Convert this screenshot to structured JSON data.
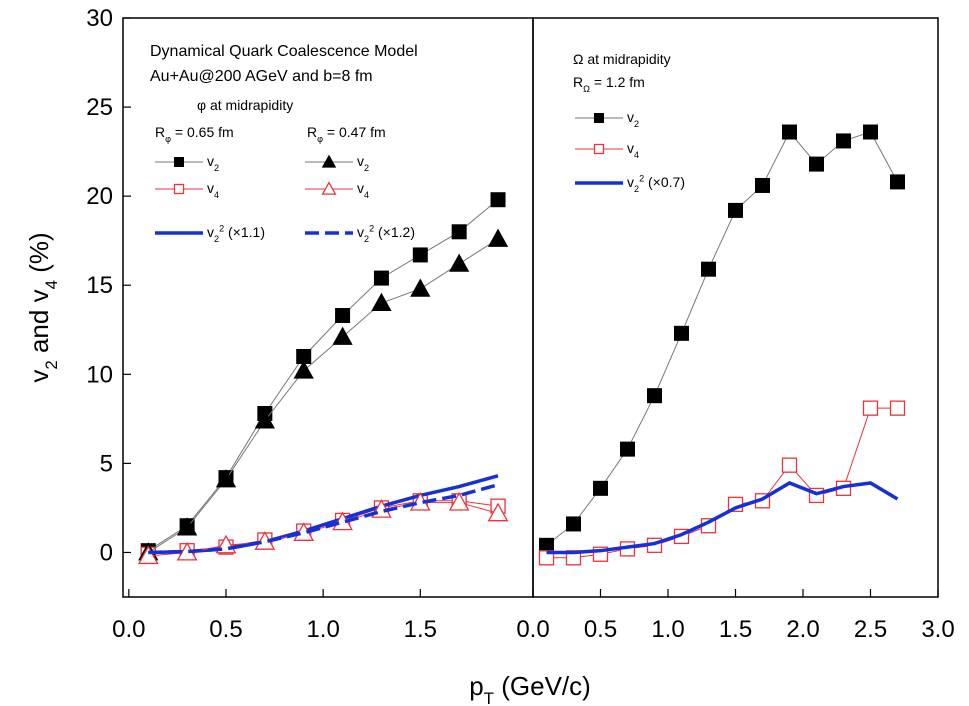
{
  "chart_data": [
    {
      "type": "line",
      "xlabel": [
        "p",
        {
          "sub": "T"
        },
        " (GeV/c)"
      ],
      "ylabel": [
        "v",
        {
          "sub": "2"
        },
        " and v",
        {
          "sub": "4"
        },
        " (%)"
      ],
      "xlim": [
        -0.03,
        2.08
      ],
      "ylim": [
        -2.5,
        30
      ],
      "xticks": [
        {
          "value": 0,
          "label": "0.0"
        },
        0.5,
        {
          "value": 1,
          "label": "1.0"
        },
        1.5
      ],
      "yticks": [
        0,
        5,
        10,
        15,
        20,
        25,
        30
      ],
      "annotations": [
        [
          "Dynamical Quark Coalescence Model"
        ],
        [
          "Au+Au@200 AGeV and b=8 fm"
        ],
        [
          "φ at midrapidity"
        ],
        [
          "R",
          {
            "sub": "φ"
          },
          " = 0.65 fm"
        ],
        [
          "R",
          {
            "sub": "φ"
          },
          " = 0.47 fm"
        ]
      ],
      "x": [
        0.1,
        0.3,
        0.5,
        0.7,
        0.9,
        1.1,
        1.3,
        1.5,
        1.7,
        1.9
      ],
      "series": [
        {
          "name": [
            "v",
            {
              "sub": "2"
            }
          ],
          "color": "#000000",
          "line_color": "#777777",
          "marker": "square",
          "filled": true,
          "values": [
            0.1,
            1.5,
            4.2,
            7.8,
            11.0,
            13.3,
            15.4,
            16.7,
            18.0,
            19.8
          ]
        },
        {
          "name": [
            "v",
            {
              "sub": "4"
            }
          ],
          "color": "#e8343a",
          "line_color": "#e8343a",
          "marker": "square",
          "filled": false,
          "values": [
            -0.1,
            0.1,
            0.3,
            0.7,
            1.2,
            1.8,
            2.5,
            2.9,
            2.9,
            2.6
          ]
        },
        {
          "name": [
            "v",
            {
              "sub": "2"
            },
            {
              "sup": "2"
            },
            " (×1.1)"
          ],
          "color": "#1530d8",
          "line_color": "#1530d8",
          "marker": null,
          "dashed": false,
          "values": [
            0.0,
            0.05,
            0.2,
            0.6,
            1.2,
            1.9,
            2.6,
            3.2,
            3.7,
            4.3
          ]
        },
        {
          "name": [
            "v",
            {
              "sub": "2"
            }
          ],
          "color": "#000000",
          "line_color": "#777777",
          "marker": "triangle",
          "filled": true,
          "values": [
            0.0,
            1.4,
            4.1,
            7.4,
            10.2,
            12.1,
            14.0,
            14.8,
            16.2,
            17.6
          ]
        },
        {
          "name": [
            "v",
            {
              "sub": "4"
            }
          ],
          "color": "#e8343a",
          "line_color": "#e8343a",
          "marker": "triangle",
          "filled": false,
          "values": [
            -0.2,
            0.0,
            0.4,
            0.6,
            1.1,
            1.7,
            2.4,
            2.8,
            2.8,
            2.2
          ]
        },
        {
          "name": [
            "v",
            {
              "sub": "2"
            },
            {
              "sup": "2"
            },
            " (×1.2)"
          ],
          "color": "#1530d8",
          "line_color": "#1530d8",
          "marker": null,
          "dashed": true,
          "values": [
            0.0,
            0.05,
            0.2,
            0.6,
            1.1,
            1.7,
            2.3,
            2.8,
            3.2,
            3.8
          ]
        }
      ]
    },
    {
      "type": "line",
      "xlim": [
        0,
        3
      ],
      "ylim": [
        -2.5,
        30
      ],
      "xticks": [
        {
          "value": 0,
          "label": "0.0"
        },
        0.5,
        {
          "value": 1,
          "label": "1.0"
        },
        1.5,
        {
          "value": 2,
          "label": "2.0"
        },
        2.5,
        {
          "value": 3,
          "label": "3.0"
        }
      ],
      "annotations": [
        [
          "Ω at midrapidity"
        ],
        [
          "R",
          {
            "sub": "Ω"
          },
          " = 1.2 fm"
        ]
      ],
      "x": [
        0.1,
        0.3,
        0.5,
        0.7,
        0.9,
        1.1,
        1.3,
        1.5,
        1.7,
        1.9,
        2.1,
        2.3,
        2.5,
        2.7
      ],
      "series": [
        {
          "name": [
            "v",
            {
              "sub": "2"
            }
          ],
          "color": "#000000",
          "line_color": "#777777",
          "marker": "square",
          "filled": true,
          "values": [
            0.4,
            1.6,
            3.6,
            5.8,
            8.8,
            12.3,
            15.9,
            19.2,
            20.6,
            23.6,
            21.8,
            23.1,
            23.6,
            20.8
          ]
        },
        {
          "name": [
            "v",
            {
              "sub": "4"
            }
          ],
          "color": "#e8343a",
          "line_color": "#e8343a",
          "marker": "square",
          "filled": false,
          "values": [
            -0.3,
            -0.3,
            -0.1,
            0.2,
            0.4,
            0.9,
            1.5,
            2.7,
            2.9,
            4.9,
            3.2,
            3.6,
            8.1,
            8.1
          ]
        },
        {
          "name": [
            "v",
            {
              "sub": "2"
            },
            {
              "sup": "2"
            },
            " (×0.7)"
          ],
          "color": "#1530d8",
          "line_color": "#1530d8",
          "marker": null,
          "dashed": false,
          "values": [
            0.0,
            0.0,
            0.1,
            0.3,
            0.5,
            1.0,
            1.7,
            2.5,
            3.0,
            3.9,
            3.3,
            3.7,
            3.9,
            3.0
          ]
        }
      ]
    }
  ]
}
